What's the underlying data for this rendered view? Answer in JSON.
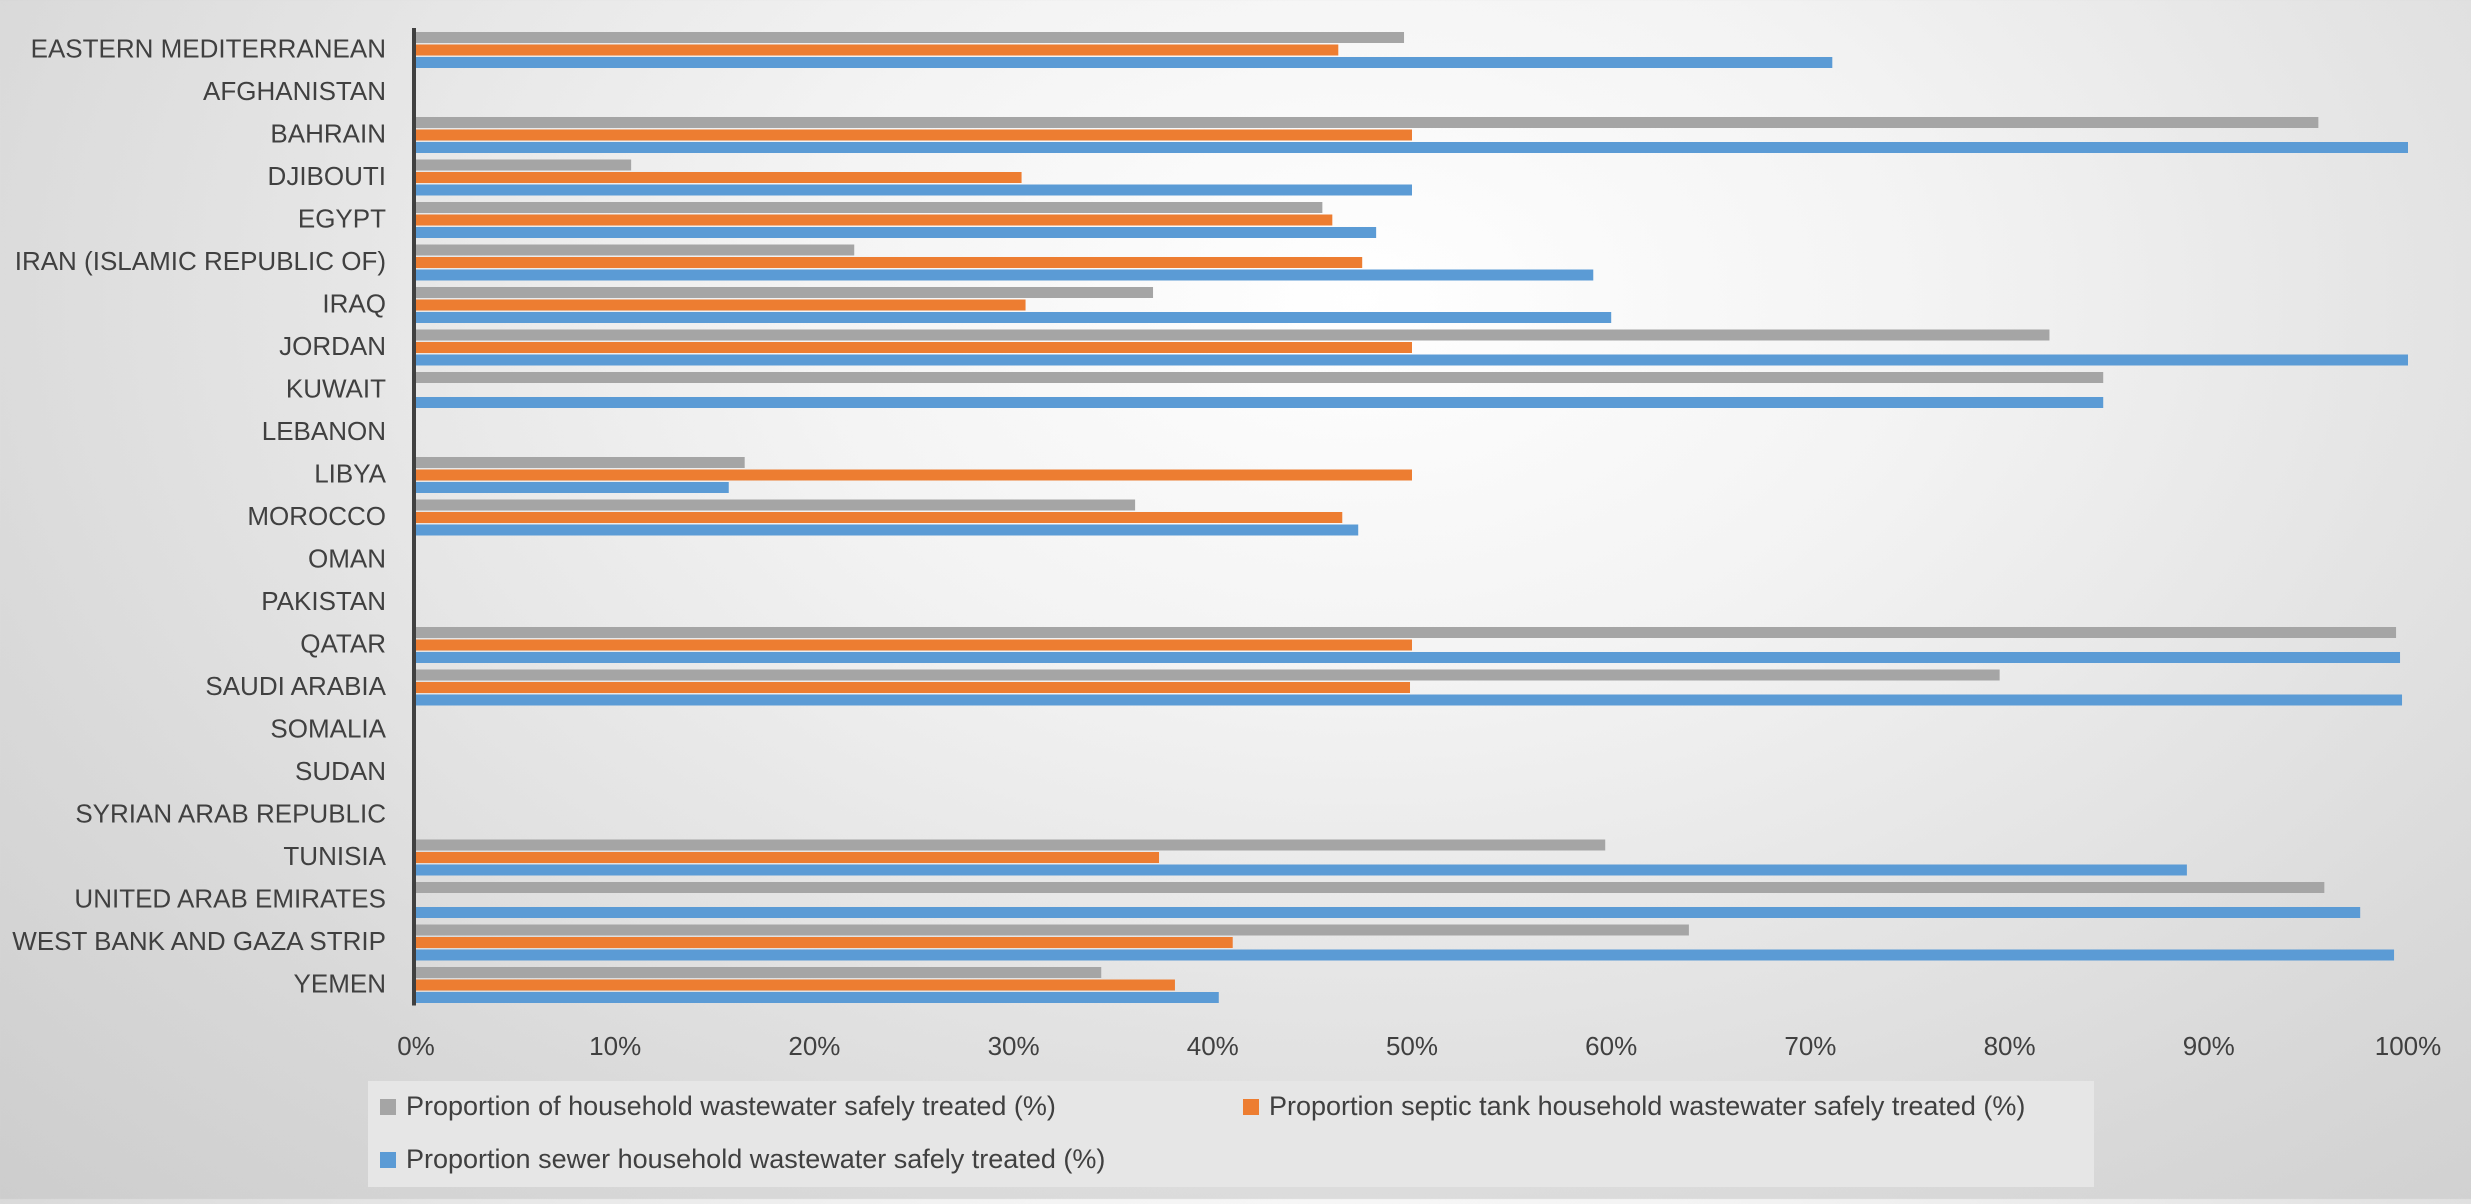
{
  "chart_data": {
    "type": "bar",
    "orientation": "horizontal",
    "categories": [
      "EASTERN MEDITERRANEAN",
      "AFGHANISTAN",
      "BAHRAIN",
      "DJIBOUTI",
      "EGYPT",
      "IRAN (ISLAMIC REPUBLIC OF)",
      "IRAQ",
      "JORDAN",
      "KUWAIT",
      "LEBANON",
      "LIBYA",
      "MOROCCO",
      "OMAN",
      "PAKISTAN",
      "QATAR",
      "SAUDI ARABIA",
      "SOMALIA",
      "SUDAN",
      "SYRIAN ARAB REPUBLIC",
      "TUNISIA",
      "UNITED ARAB EMIRATES",
      "WEST BANK AND GAZA STRIP",
      "YEMEN"
    ],
    "series": [
      {
        "name": "Proportion of household wastewater safely treated (%)",
        "color": "#a5a5a5",
        "values": [
          49.6,
          null,
          95.5,
          10.8,
          45.5,
          22.0,
          37.0,
          82.0,
          84.7,
          null,
          16.5,
          36.1,
          null,
          null,
          99.4,
          79.5,
          null,
          null,
          null,
          59.7,
          95.8,
          63.9,
          34.4
        ]
      },
      {
        "name": "Proportion septic tank household wastewater safely treated (%)",
        "color": "#ed7d31",
        "values": [
          46.3,
          null,
          50.0,
          30.4,
          46.0,
          47.5,
          30.6,
          50.0,
          null,
          null,
          50.0,
          46.5,
          null,
          null,
          50.0,
          49.9,
          null,
          null,
          null,
          37.3,
          null,
          41.0,
          38.1
        ]
      },
      {
        "name": "Proportion sewer household wastewater safely treated (%)",
        "color": "#5b9bd5",
        "values": [
          71.1,
          null,
          100.0,
          50.0,
          48.2,
          59.1,
          60.0,
          100.0,
          84.7,
          null,
          15.7,
          47.3,
          null,
          null,
          99.6,
          99.7,
          null,
          null,
          null,
          88.9,
          97.6,
          99.3,
          40.3
        ]
      }
    ],
    "xlim": [
      0,
      100
    ],
    "x_ticks": [
      "0%",
      "10%",
      "20%",
      "30%",
      "40%",
      "50%",
      "60%",
      "70%",
      "80%",
      "90%",
      "100%"
    ],
    "legend_position": "bottom",
    "grid": false
  }
}
